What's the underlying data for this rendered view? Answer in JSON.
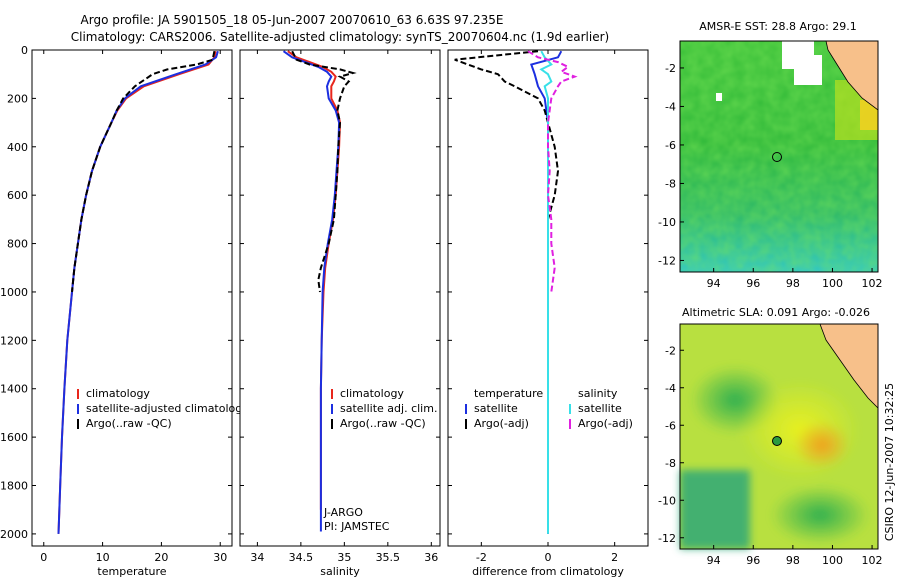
{
  "title": {
    "line1": "Argo profile: JA 5901505_18 05-Jun-2007 20070610_63 6.63S 97.235E",
    "line2": "Climatology: CARS2006. Satellite-adjusted climatology: synTS_20070604.nc (1.9d earlier)"
  },
  "side_stamp": "CSIRO 12-Jun-2007 10:32:25",
  "colors": {
    "climatology": "#e8261c",
    "satellite": "#1c2fe0",
    "argo": "#000000",
    "sal_satellite": "#38e0e8",
    "sal_argo": "#e020e0"
  },
  "chart_data": [
    {
      "type": "line",
      "name": "temperature-panel",
      "xlabel": "temperature",
      "ylabel": "",
      "xlim": [
        -2,
        32
      ],
      "ylim": [
        2050,
        0
      ],
      "xticks": [
        "0",
        "10",
        "20",
        "30"
      ],
      "xtick_values": [
        0,
        10,
        20,
        30
      ],
      "yticks": [
        "0",
        "200",
        "400",
        "600",
        "800",
        "1000",
        "1200",
        "1400",
        "1600",
        "1800",
        "2000"
      ],
      "ytick_values": [
        0,
        200,
        400,
        600,
        800,
        1000,
        1200,
        1400,
        1600,
        1800,
        2000
      ],
      "legend": [
        "climatology",
        "satellite-adjusted climatology",
        "Argo(..raw -QC)"
      ],
      "series": [
        {
          "name": "climatology",
          "color": "climatology",
          "dash": false,
          "depth": [
            5,
            30,
            60,
            100,
            150,
            200,
            250,
            300,
            400,
            500,
            600,
            700,
            800,
            900,
            1000,
            1200,
            1400,
            1600,
            1800,
            2000
          ],
          "values": [
            29.2,
            29.0,
            28.0,
            23.0,
            17.0,
            14.0,
            12.5,
            11.5,
            9.6,
            8.2,
            7.2,
            6.4,
            5.8,
            5.2,
            4.8,
            4.0,
            3.5,
            3.1,
            2.8,
            2.5
          ]
        },
        {
          "name": "satellite-adjusted climatology",
          "color": "satellite",
          "dash": false,
          "depth": [
            5,
            30,
            60,
            100,
            150,
            200,
            250,
            300,
            400,
            500,
            600,
            700,
            800,
            900,
            1000,
            1200,
            1400,
            1600,
            1800,
            2000
          ],
          "values": [
            29.6,
            29.3,
            27.5,
            22.5,
            16.5,
            13.8,
            12.4,
            11.5,
            9.6,
            8.2,
            7.2,
            6.4,
            5.8,
            5.2,
            4.8,
            4.0,
            3.5,
            3.1,
            2.8,
            2.5
          ]
        },
        {
          "name": "Argo(..raw -QC)",
          "color": "argo",
          "dash": true,
          "depth": [
            5,
            40,
            60,
            80,
            100,
            150,
            200,
            250,
            300,
            400,
            500,
            600,
            700,
            800,
            900,
            1000
          ],
          "values": [
            29.0,
            28.7,
            26.0,
            21.0,
            18.5,
            15.5,
            13.5,
            12.4,
            11.5,
            9.6,
            8.2,
            7.2,
            6.4,
            5.8,
            5.2,
            4.8
          ]
        }
      ],
      "note": ""
    },
    {
      "type": "line",
      "name": "salinity-panel",
      "xlabel": "salinity",
      "ylabel": "",
      "xlim": [
        33.8,
        36.1
      ],
      "ylim": [
        2050,
        0
      ],
      "xticks": [
        "34",
        "34.5",
        "35",
        "35.5",
        "36"
      ],
      "xtick_values": [
        34,
        34.5,
        35,
        35.5,
        36
      ],
      "yticks": [],
      "ytick_values": [],
      "legend": [
        "climatology",
        "satellite adj. clim.",
        "Argo(..raw -QC)"
      ],
      "series": [
        {
          "name": "climatology",
          "color": "climatology",
          "dash": false,
          "depth": [
            5,
            30,
            50,
            70,
            90,
            110,
            130,
            150,
            200,
            250,
            300,
            400,
            500,
            600,
            700,
            800,
            900,
            1000,
            1200,
            1400,
            1600,
            1800,
            1900
          ],
          "values": [
            34.35,
            34.45,
            34.6,
            34.75,
            34.85,
            34.9,
            34.88,
            34.85,
            34.85,
            34.92,
            34.95,
            34.94,
            34.92,
            34.9,
            34.87,
            34.82,
            34.78,
            34.76,
            34.74,
            34.73,
            34.73,
            34.73,
            34.73
          ]
        },
        {
          "name": "satellite adj. clim.",
          "color": "satellite",
          "dash": false,
          "depth": [
            5,
            30,
            50,
            70,
            90,
            110,
            130,
            150,
            200,
            250,
            300,
            400,
            500,
            600,
            700,
            800,
            900,
            1000,
            1200,
            1400,
            1600,
            1800,
            1990
          ],
          "values": [
            34.3,
            34.4,
            34.55,
            34.7,
            34.8,
            34.85,
            34.82,
            34.8,
            34.82,
            34.9,
            34.94,
            34.93,
            34.91,
            34.89,
            34.86,
            34.81,
            34.77,
            34.75,
            34.74,
            34.73,
            34.73,
            34.73,
            34.73
          ]
        },
        {
          "name": "Argo(..raw -QC)",
          "color": "argo",
          "dash": true,
          "depth": [
            5,
            40,
            60,
            80,
            95,
            110,
            130,
            150,
            200,
            250,
            300,
            400,
            500,
            600,
            700,
            800,
            900,
            950,
            1000
          ],
          "values": [
            34.4,
            34.45,
            34.6,
            34.95,
            35.1,
            34.95,
            35.05,
            35.0,
            34.95,
            34.92,
            34.95,
            34.93,
            34.92,
            34.9,
            34.88,
            34.82,
            34.73,
            34.7,
            34.72
          ]
        }
      ],
      "note": "J-ARGO\nPI: JAMSTEC"
    },
    {
      "type": "line",
      "name": "difference-panel",
      "xlabel": "difference from climatology",
      "ylabel": "",
      "xlim": [
        -3,
        3
      ],
      "ylim": [
        2050,
        0
      ],
      "xticks": [
        "-2",
        "0",
        "2"
      ],
      "xtick_values": [
        -2,
        0,
        2
      ],
      "yticks": [],
      "ytick_values": [],
      "legend": [
        "temperature",
        "satellite",
        "Argo(-adj)",
        "salinity",
        "satellite",
        "Argo(-adj)"
      ],
      "series": [
        {
          "name": "temperature satellite",
          "color": "satellite",
          "dash": false,
          "depth": [
            5,
            30,
            60,
            100,
            150,
            200,
            300,
            500,
            800,
            1200,
            1600,
            2000
          ],
          "values": [
            0.4,
            0.3,
            -0.5,
            -0.4,
            -0.3,
            -0.1,
            0.0,
            0.0,
            0.0,
            0.0,
            0.0,
            0.0
          ]
        },
        {
          "name": "temperature Argo(-adj)",
          "color": "argo",
          "dash": true,
          "depth": [
            5,
            40,
            50,
            80,
            100,
            130,
            150,
            200,
            250,
            300,
            400,
            500,
            600,
            700,
            800,
            900,
            1000
          ],
          "values": [
            -0.3,
            -2.8,
            -2.6,
            -2.0,
            -1.5,
            -1.3,
            -1.0,
            -0.3,
            -0.1,
            0.0,
            0.2,
            0.3,
            0.2,
            0.0,
            0.0,
            0.0,
            0.0
          ]
        },
        {
          "name": "salinity satellite",
          "color": "sal_satellite",
          "dash": false,
          "depth": [
            5,
            30,
            60,
            80,
            100,
            130,
            150,
            200,
            300,
            500,
            800,
            1200,
            1600,
            2000
          ],
          "values": [
            -0.2,
            -0.1,
            0.1,
            -0.2,
            0.0,
            0.1,
            -0.1,
            0.0,
            0.0,
            0.0,
            0.0,
            0.0,
            0.0,
            0.0
          ]
        },
        {
          "name": "salinity Argo(-adj)",
          "color": "sal_argo",
          "dash": true,
          "depth": [
            5,
            30,
            50,
            70,
            90,
            110,
            130,
            150,
            200,
            300,
            400,
            500,
            600,
            700,
            800,
            900,
            1000
          ],
          "values": [
            -0.6,
            -0.3,
            0.3,
            0.6,
            0.4,
            0.8,
            0.4,
            0.3,
            0.1,
            0.0,
            0.0,
            0.05,
            0.0,
            0.1,
            0.1,
            0.2,
            0.1
          ]
        }
      ],
      "note": ""
    },
    {
      "type": "heatmap",
      "name": "sst-map",
      "title": "AMSR-E SST: 28.8 Argo: 29.1",
      "xlim": [
        92.3,
        102.3
      ],
      "ylim": [
        -12.6,
        -0.6
      ],
      "xticks": [
        "94",
        "96",
        "98",
        "100",
        "102"
      ],
      "xtick_values": [
        94,
        96,
        98,
        100,
        102
      ],
      "yticks": [
        "-2",
        "-4",
        "-6",
        "-8",
        "-10",
        "-12"
      ],
      "ytick_values": [
        -2,
        -4,
        -6,
        -8,
        -10,
        -12
      ],
      "marker": [
        97.235,
        -6.63
      ]
    },
    {
      "type": "heatmap",
      "name": "sla-map",
      "title": "Altimetric SLA: 0.091 Argo: -0.026",
      "xlim": [
        92.3,
        102.3
      ],
      "ylim": [
        -12.6,
        -0.6
      ],
      "xticks": [
        "94",
        "96",
        "98",
        "100",
        "102"
      ],
      "xtick_values": [
        94,
        96,
        98,
        100,
        102
      ],
      "yticks": [
        "-2",
        "-4",
        "-6",
        "-8",
        "-10",
        "-12"
      ],
      "ytick_values": [
        -2,
        -4,
        -6,
        -8,
        -10,
        -12
      ],
      "marker": [
        97.235,
        -6.63
      ]
    }
  ]
}
